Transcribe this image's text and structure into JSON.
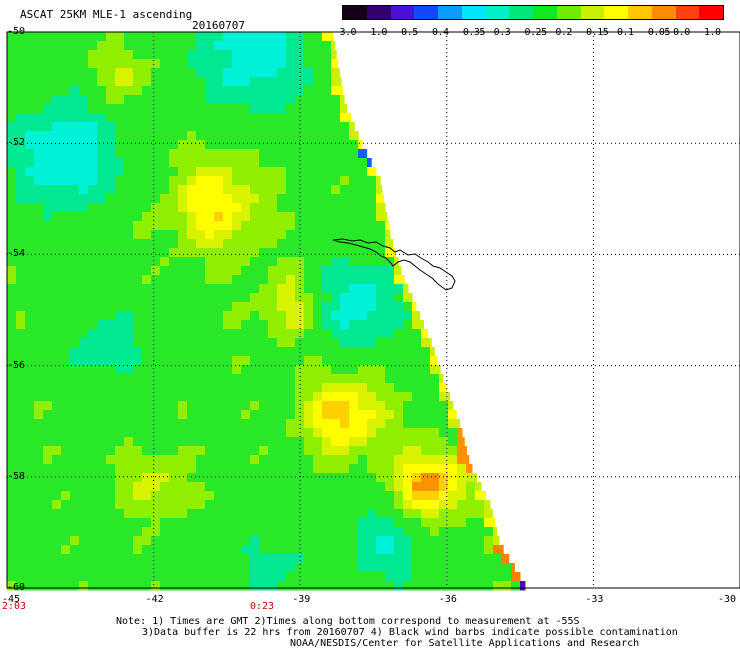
{
  "header": {
    "title": "ASCAT 25KM MLE-1 ascending",
    "date": "20160707"
  },
  "colorbar": {
    "colors": [
      "#150018",
      "#33006e",
      "#4a10d8",
      "#1248ff",
      "#0a9cff",
      "#00e6ff",
      "#00f0c8",
      "#00e878",
      "#10e820",
      "#70ec00",
      "#c8f000",
      "#ffff00",
      "#ffc800",
      "#ff8c00",
      "#ff4010",
      "#ff0000"
    ],
    "labels": [
      "-3.0",
      "-1.0",
      "-0.5",
      "-0.4",
      "-0.35",
      "-0.3",
      "-0.25",
      "-0.2",
      "-0.15",
      "-0.1",
      "-0.05",
      "0.0",
      "1.0"
    ]
  },
  "map": {
    "lat_labels": [
      "-50",
      "-52",
      "-54",
      "-56",
      "-58",
      "-60"
    ],
    "lon_labels": [
      "-45",
      "-42",
      "-39",
      "-36",
      "-33",
      "-30"
    ],
    "time_labels": [
      "2:03",
      "0:23"
    ]
  },
  "footer": {
    "line1": "Note: 1) Times are GMT 2)Times along bottom correspond to measurement at -55S",
    "line2": "3)Data buffer is 22 hrs from 20160707 4) Black wind barbs indicate possible contamination",
    "line3": "NOAA/NESDIS/Center for Satellite Applications and Research"
  }
}
